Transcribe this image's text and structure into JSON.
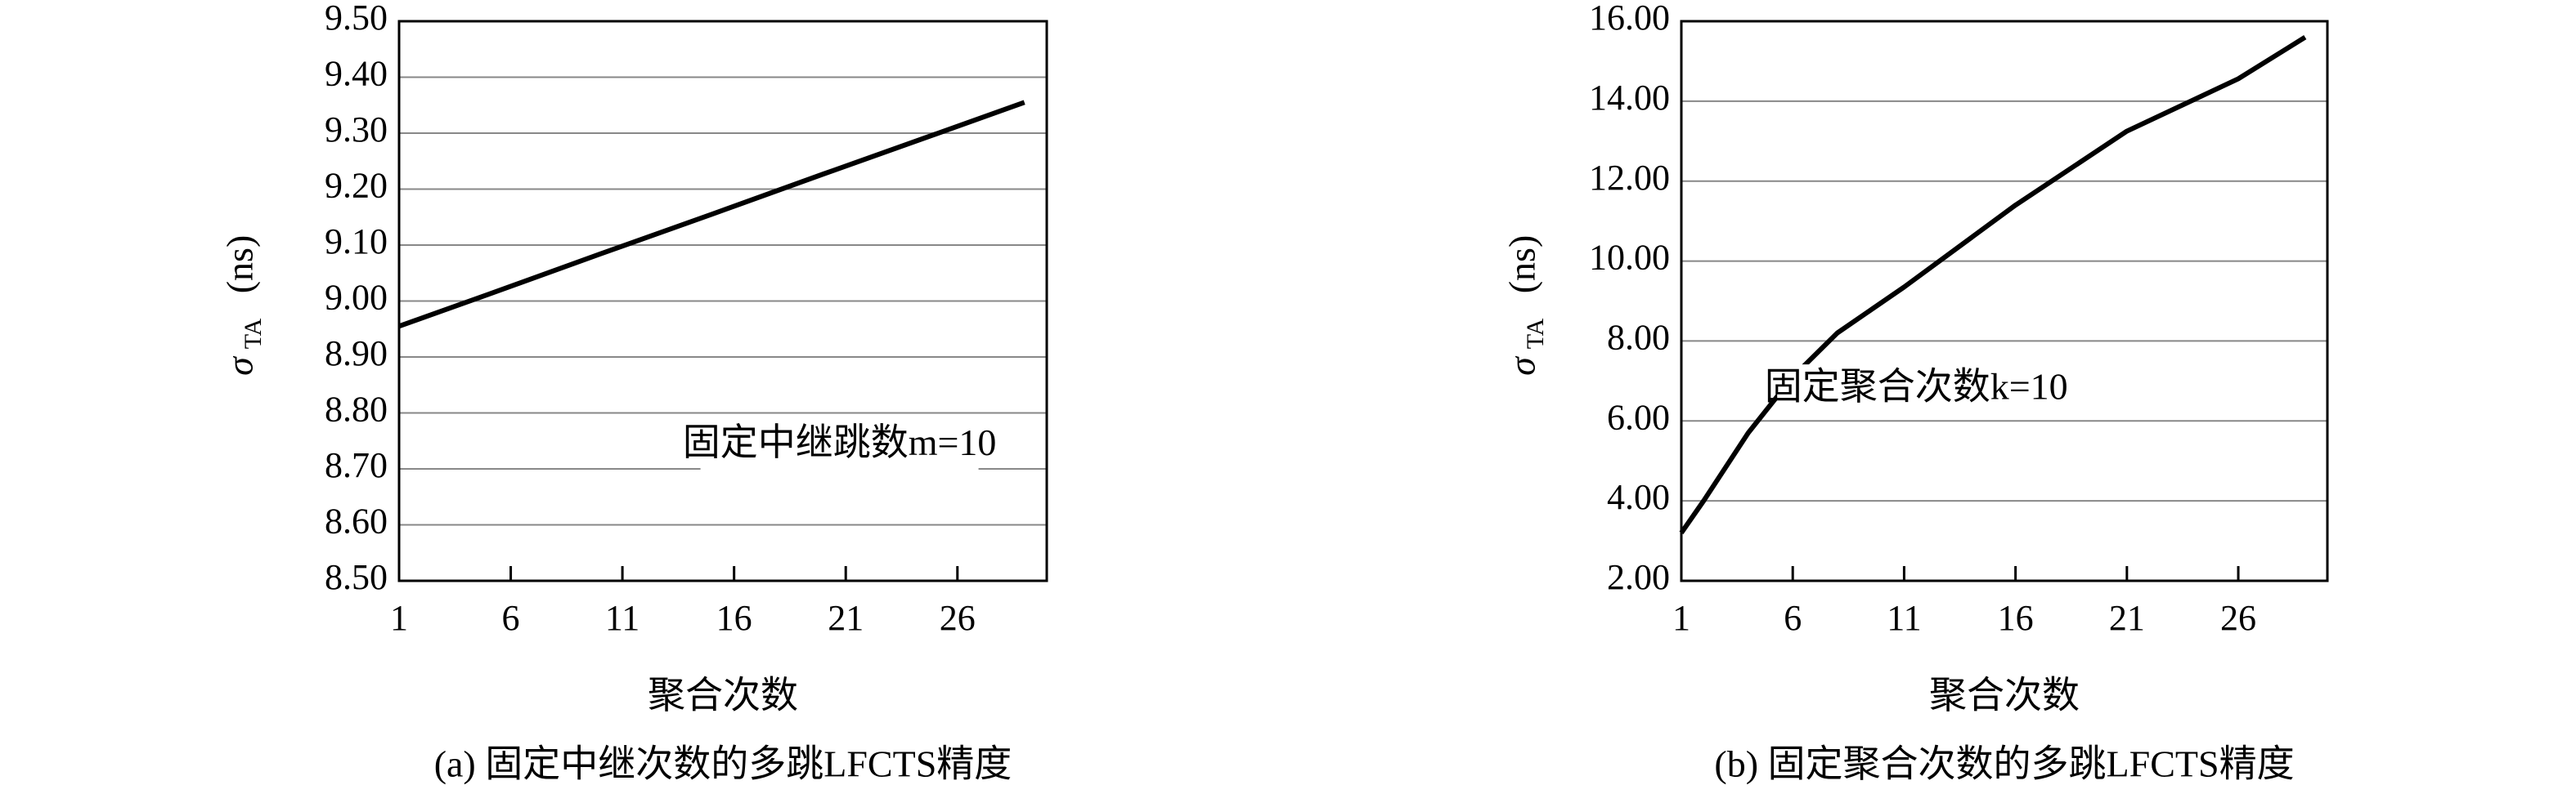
{
  "chart_data": [
    {
      "type": "line",
      "caption": "(a) 固定中继次数的多跳LFCTS精度",
      "x_label": "聚合次数",
      "y_label": {
        "symbol": "σ",
        "subscript": "TA",
        "unit": "(ns)"
      },
      "annotation": "固定中继跳数m=10",
      "x": [
        1,
        5,
        10,
        15,
        20,
        25,
        29
      ],
      "series": [
        {
          "color": "#000000",
          "values": [
            8.955,
            9.012,
            9.084,
            9.155,
            9.227,
            9.298,
            9.355
          ]
        }
      ],
      "xlim": [
        1,
        30
      ],
      "xticks": [
        1,
        6,
        11,
        16,
        21,
        26
      ],
      "ylim": [
        8.5,
        9.5
      ],
      "yticks": [
        {
          "value": 8.5,
          "label": "8.50"
        },
        {
          "value": 8.6,
          "label": "8.60"
        },
        {
          "value": 8.7,
          "label": "8.70"
        },
        {
          "value": 8.8,
          "label": "8.80"
        },
        {
          "value": 8.9,
          "label": "8.90"
        },
        {
          "value": 9.0,
          "label": "9.00"
        },
        {
          "value": 9.1,
          "label": "9.10"
        },
        {
          "value": 9.2,
          "label": "9.20"
        },
        {
          "value": 9.3,
          "label": "9.30"
        },
        {
          "value": 9.4,
          "label": "9.40"
        },
        {
          "value": 9.5,
          "label": "9.50"
        }
      ],
      "grid": true
    },
    {
      "type": "line",
      "caption": "(b) 固定聚合次数的多跳LFCTS精度",
      "x_label": "聚合次数",
      "y_label": {
        "symbol": "σ",
        "subscript": "TA",
        "unit": "(ns)"
      },
      "annotation": "固定聚合次数k=10",
      "x": [
        1,
        2,
        4,
        6,
        8,
        11,
        16,
        21,
        26,
        29
      ],
      "series": [
        {
          "color": "#000000",
          "values": [
            3.2,
            4.0,
            5.7,
            7.1,
            8.2,
            9.35,
            11.4,
            13.25,
            14.56,
            15.6
          ]
        }
      ],
      "xlim": [
        1,
        30
      ],
      "xticks": [
        1,
        6,
        11,
        16,
        21,
        26
      ],
      "ylim": [
        2,
        16
      ],
      "yticks": [
        {
          "value": 2,
          "label": "2.00"
        },
        {
          "value": 4,
          "label": "4.00"
        },
        {
          "value": 6,
          "label": "6.00"
        },
        {
          "value": 8,
          "label": "8.00"
        },
        {
          "value": 10,
          "label": "10.00"
        },
        {
          "value": 12,
          "label": "12.00"
        },
        {
          "value": 14,
          "label": "14.00"
        },
        {
          "value": 16,
          "label": "16.00"
        }
      ],
      "grid": true
    }
  ]
}
